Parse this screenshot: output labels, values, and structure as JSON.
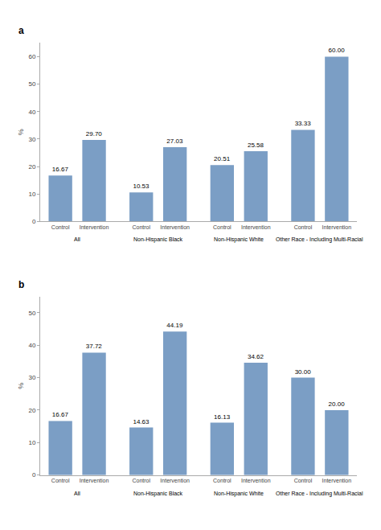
{
  "chart_data": [
    {
      "type": "bar",
      "title": "a",
      "ylabel": "%",
      "categories": [
        "Control",
        "Intervention",
        "Control",
        "Intervention",
        "Control",
        "Intervention",
        "Control",
        "Intervention"
      ],
      "annotations": [
        "All",
        "Non-Hispanic Black",
        "Non-Hispanic White",
        "Other Race - Including Multi-Racial"
      ],
      "values": [
        16.67,
        29.7,
        10.53,
        27.03,
        20.51,
        25.58,
        33.33,
        60.0
      ],
      "value_labels": [
        "16.67",
        "29.70",
        "10.53",
        "27.03",
        "20.51",
        "25.58",
        "33.33",
        "60.00"
      ],
      "data_labels": true,
      "color": "#7b9ec5",
      "ylim": [
        0,
        65
      ],
      "yticks": [
        0,
        10,
        20,
        30,
        40,
        50,
        60
      ],
      "grid": false
    },
    {
      "type": "bar",
      "title": "b",
      "ylabel": "%",
      "categories": [
        "Control",
        "Intervention",
        "Control",
        "Intervention",
        "Control",
        "Intervention",
        "Control",
        "Intervention"
      ],
      "annotations": [
        "All",
        "Non-Hispanic Black",
        "Non-Hispanic White",
        "Other Race - Including Multi-Racial"
      ],
      "values": [
        16.67,
        37.72,
        14.63,
        44.19,
        16.13,
        34.62,
        30.0,
        20.0
      ],
      "value_labels": [
        "16.67",
        "37.72",
        "14.63",
        "44.19",
        "16.13",
        "34.62",
        "30.00",
        "20.00"
      ],
      "data_labels": true,
      "color": "#7b9ec5",
      "ylim": [
        0,
        55
      ],
      "yticks": [
        0,
        10,
        20,
        30,
        40,
        50
      ],
      "grid": false
    }
  ]
}
